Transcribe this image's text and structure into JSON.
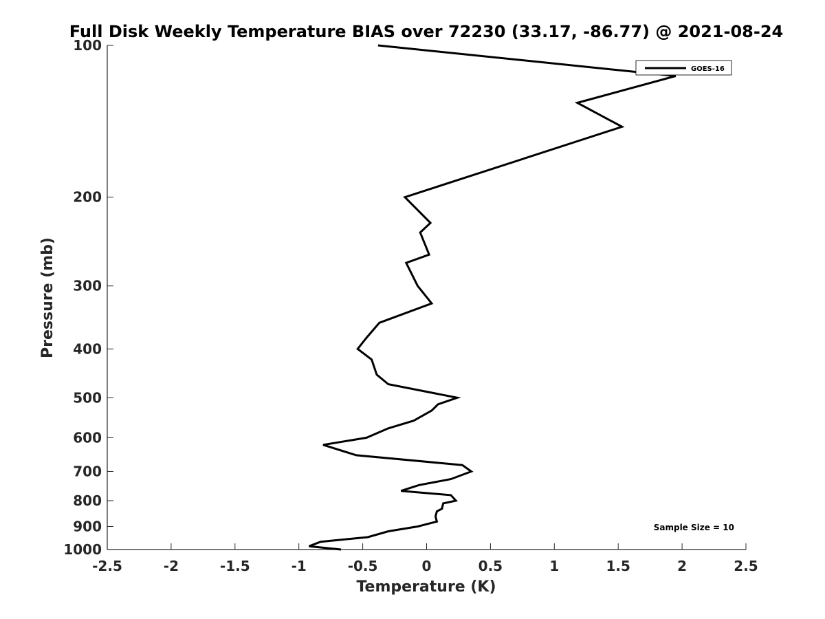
{
  "chart_data": {
    "type": "line",
    "title": "Full Disk Weekly Temperature BIAS over 72230 (33.17, -86.77) @ 2021-08-24",
    "xlabel": "Temperature (K)",
    "ylabel": "Pressure (mb)",
    "xlim": [
      -2.5,
      2.5
    ],
    "ylim": [
      1000,
      100
    ],
    "y_scale": "log",
    "y_reversed": true,
    "grid": false,
    "legend_position": "top-right",
    "x_ticks": [
      "-2.5",
      "-2",
      "-1.5",
      "-1",
      "-0.5",
      "0",
      "0.5",
      "1",
      "1.5",
      "2",
      "2.5"
    ],
    "x_tick_values": [
      -2.5,
      -2,
      -1.5,
      -1,
      -0.5,
      0,
      0.5,
      1,
      1.5,
      2,
      2.5
    ],
    "y_ticks": [
      "100",
      "200",
      "300",
      "400",
      "500",
      "600",
      "700",
      "800",
      "900",
      "1000"
    ],
    "y_tick_values": [
      100,
      200,
      300,
      400,
      500,
      600,
      700,
      800,
      900,
      1000
    ],
    "series": [
      {
        "name": "GOES-16",
        "color": "#000000",
        "x": [
          -0.38,
          1.95,
          1.18,
          1.53,
          -0.17,
          0.03,
          -0.05,
          0.02,
          -0.16,
          -0.07,
          0.04,
          -0.37,
          -0.47,
          -0.54,
          -0.43,
          -0.39,
          -0.3,
          0.24,
          0.09,
          0.04,
          -0.1,
          -0.3,
          -0.47,
          -0.81,
          -0.55,
          0.28,
          0.35,
          0.19,
          -0.06,
          -0.2,
          0.19,
          0.23,
          0.13,
          0.12,
          0.08,
          0.07,
          0.08,
          -0.07,
          -0.3,
          -0.46,
          -0.83,
          -0.92,
          -0.67
        ],
        "y": [
          100,
          115,
          130,
          145,
          200,
          225,
          235,
          260,
          270,
          300,
          325,
          355,
          380,
          400,
          420,
          450,
          470,
          500,
          515,
          530,
          555,
          575,
          600,
          620,
          650,
          680,
          700,
          725,
          745,
          765,
          780,
          800,
          810,
          830,
          840,
          860,
          880,
          900,
          920,
          945,
          965,
          985,
          1000
        ]
      }
    ],
    "annotations": [
      "Sample Size = 10"
    ]
  }
}
